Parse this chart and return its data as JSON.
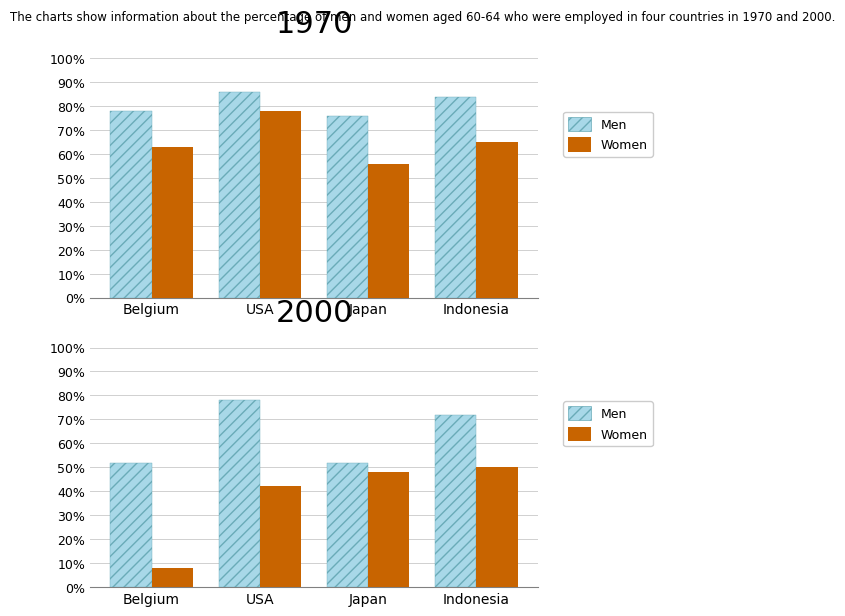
{
  "title_1970": "1970",
  "title_2000": "2000",
  "subtitle": "The charts show information about the percentage of men and women aged 60-64 who were employed in four countries in 1970 and 2000.",
  "categories": [
    "Belgium",
    "USA",
    "Japan",
    "Indonesia"
  ],
  "data_1970": {
    "men": [
      78,
      86,
      76,
      84
    ],
    "women": [
      63,
      78,
      56,
      65
    ]
  },
  "data_2000": {
    "men": [
      52,
      78,
      52,
      72
    ],
    "women": [
      8,
      42,
      48,
      50
    ]
  },
  "men_color": "#A8D8E8",
  "women_color": "#C86400",
  "men_hatch": "///",
  "background_color": "#FFFFFF",
  "yticks": [
    0,
    10,
    20,
    30,
    40,
    50,
    60,
    70,
    80,
    90,
    100
  ],
  "ylim_max": 105,
  "bar_width": 0.38,
  "subtitle_fontsize": 8.5,
  "title_fontsize": 22,
  "tick_fontsize": 9,
  "xlabel_fontsize": 10
}
